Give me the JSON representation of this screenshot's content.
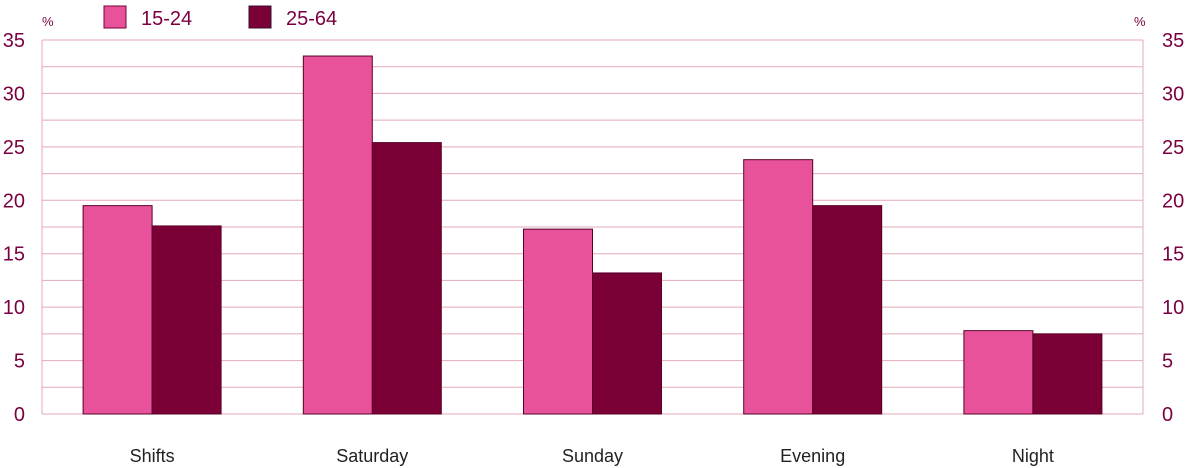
{
  "chart_data": {
    "type": "bar",
    "categories": [
      "Shifts",
      "Saturday",
      "Sunday",
      "Evening",
      "Night"
    ],
    "series": [
      {
        "name": "15-24",
        "values": [
          19.5,
          33.5,
          17.3,
          23.8,
          7.8
        ],
        "color": "#e8529a"
      },
      {
        "name": "25-64",
        "values": [
          17.6,
          25.4,
          13.2,
          19.5,
          7.5
        ],
        "color": "#7a0035"
      }
    ],
    "ylim": [
      0,
      35
    ],
    "yticks": [
      0,
      5,
      10,
      15,
      20,
      25,
      30,
      35
    ],
    "left_unit": "%",
    "right_unit": "%",
    "grid": true,
    "legend_position": "top-left",
    "gridline_color": "#e3a8b8",
    "text_color": "#7a0040"
  }
}
